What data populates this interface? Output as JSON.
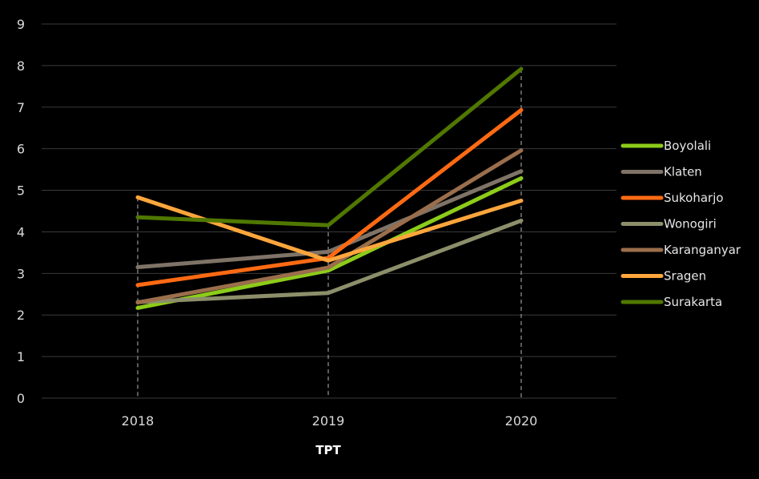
{
  "chart_data": {
    "type": "line",
    "title": "",
    "xlabel": "TPT",
    "ylabel": "",
    "categories": [
      "2018",
      "2019",
      "2020"
    ],
    "ylim": [
      0,
      9
    ],
    "yticks": [
      0,
      1,
      2,
      3,
      4,
      5,
      6,
      7,
      8,
      9
    ],
    "grid": true,
    "drop_lines": true,
    "legend_position": "right",
    "series": [
      {
        "name": "Boyolali",
        "color": "#8ccc1a",
        "values": [
          2.17,
          3.07,
          5.29
        ]
      },
      {
        "name": "Klaten",
        "color": "#7f7367",
        "values": [
          3.15,
          3.52,
          5.46
        ]
      },
      {
        "name": "Sukoharjo",
        "color": "#ff6a13",
        "values": [
          2.72,
          3.37,
          6.93
        ]
      },
      {
        "name": "Wonogiri",
        "color": "#8c8f6a",
        "values": [
          2.31,
          2.53,
          4.27
        ]
      },
      {
        "name": "Karanganyar",
        "color": "#9b6e4c",
        "values": [
          2.3,
          3.14,
          5.96
        ]
      },
      {
        "name": "Sragen",
        "color": "#ffa63c",
        "values": [
          4.83,
          3.31,
          4.75
        ]
      },
      {
        "name": "Surakarta",
        "color": "#507800",
        "values": [
          4.35,
          4.16,
          7.92
        ]
      }
    ]
  }
}
